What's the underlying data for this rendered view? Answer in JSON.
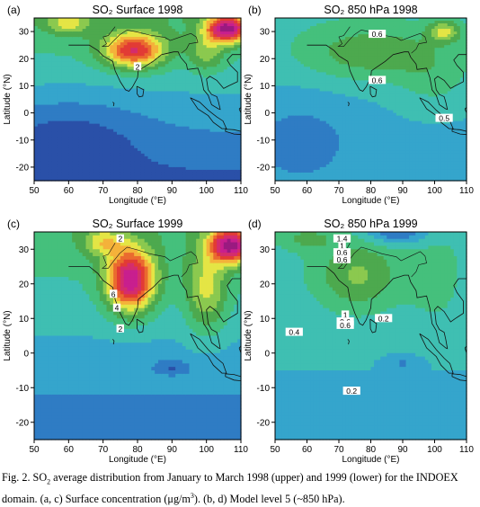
{
  "chart_data": [
    {
      "type": "heatmap",
      "panel": "(a)",
      "title": "SO₂ Surface 1998",
      "xlabel": "Longitude (°E)",
      "ylabel": "Latitude (°N)",
      "xticks": [
        "50",
        "60",
        "70",
        "80",
        "90",
        "100",
        "110"
      ],
      "yticks": [
        "30",
        "20",
        "10",
        "0",
        "-10",
        "-20"
      ],
      "xlim": [
        50,
        110
      ],
      "ylim": [
        -25,
        35
      ],
      "contour_labels": [
        {
          "text": "2",
          "lon": 80,
          "lat": 17
        }
      ]
    },
    {
      "type": "heatmap",
      "panel": "(b)",
      "title": "SO₂ 850 hPa 1998",
      "xlabel": "Longitude (°E)",
      "ylabel": "Latitude (°N)",
      "xticks": [
        "50",
        "60",
        "70",
        "80",
        "90",
        "100",
        "110"
      ],
      "yticks": [
        "30",
        "20",
        "10",
        "0",
        "-10",
        "-20"
      ],
      "xlim": [
        50,
        110
      ],
      "ylim": [
        -25,
        35
      ],
      "contour_labels": [
        {
          "text": "0.6",
          "lon": 82,
          "lat": 29
        },
        {
          "text": "0.6",
          "lon": 82,
          "lat": 12
        },
        {
          "text": "0.5",
          "lon": 103,
          "lat": -2
        }
      ]
    },
    {
      "type": "heatmap",
      "panel": "(c)",
      "title": "SO₂ Surface 1999",
      "xlabel": "Longitude (°E)",
      "ylabel": "Latitude (°N)",
      "xticks": [
        "50",
        "60",
        "70",
        "80",
        "90",
        "100",
        "110"
      ],
      "yticks": [
        "30",
        "20",
        "10",
        "0",
        "-10",
        "-20"
      ],
      "xlim": [
        50,
        110
      ],
      "ylim": [
        -25,
        35
      ],
      "contour_labels": [
        {
          "text": "2",
          "lon": 75,
          "lat": 33
        },
        {
          "text": "6",
          "lon": 73,
          "lat": 17
        },
        {
          "text": "4",
          "lon": 74,
          "lat": 13
        },
        {
          "text": "2",
          "lon": 75,
          "lat": 7
        }
      ]
    },
    {
      "type": "heatmap",
      "panel": "(d)",
      "title": "SO₂ 850 hPa 1999",
      "xlabel": "Longitude (°E)",
      "ylabel": "Latitude (°N)",
      "xticks": [
        "50",
        "60",
        "70",
        "80",
        "90",
        "100",
        "110"
      ],
      "yticks": [
        "30",
        "20",
        "10",
        "0",
        "-10",
        "-20"
      ],
      "xlim": [
        50,
        110
      ],
      "ylim": [
        -25,
        35
      ],
      "contour_labels": [
        {
          "text": "1.4",
          "lon": 71,
          "lat": 33
        },
        {
          "text": "1",
          "lon": 71,
          "lat": 31
        },
        {
          "text": "0.6",
          "lon": 71,
          "lat": 29
        },
        {
          "text": "0.6",
          "lon": 71,
          "lat": 27
        },
        {
          "text": "1",
          "lon": 72,
          "lat": 11
        },
        {
          "text": "0.6",
          "lon": 72,
          "lat": 9
        },
        {
          "text": "0.6",
          "lon": 72,
          "lat": 8
        },
        {
          "text": "0.2",
          "lon": 84,
          "lat": 10
        },
        {
          "text": "0.4",
          "lon": 56,
          "lat": 6
        },
        {
          "text": "0.2",
          "lon": 74,
          "lat": -11
        }
      ]
    }
  ],
  "caption": {
    "part1": "Fig. 2. SO",
    "sub": "2",
    "part2": " average distribution from January to March 1998 (upper) and 1999 (lower) for the INDOEX domain. (a, c) Surface concentration (μg/m",
    "sup": "3",
    "part3": "). (b, d) Model level 5 (~850 hPa)."
  }
}
